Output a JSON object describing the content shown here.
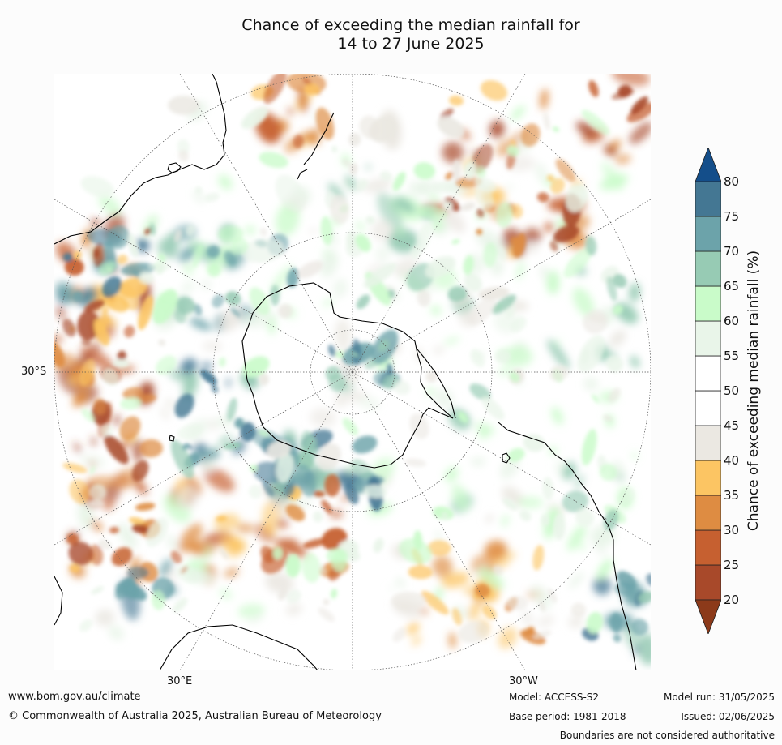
{
  "title_line1": "Chance of exceeding the median rainfall for",
  "title_line2": "14 to 27 June 2025",
  "map": {
    "projection": "south-polar-stereographic",
    "graticule_labels": {
      "latitude": "30°S",
      "longitude_east": "30°E",
      "longitude_west": "30°W"
    },
    "colors": {
      "land_outline": "#000000",
      "graticule": "#555555",
      "ocean_background": "#ffffff"
    }
  },
  "colorbar": {
    "label": "Chance of exceeding median rainfall (%)",
    "ticks": [
      "20",
      "25",
      "30",
      "35",
      "40",
      "45",
      "50",
      "55",
      "60",
      "65",
      "70",
      "75",
      "80"
    ],
    "under_color": "#8c3a1a",
    "over_color": "#144e8a",
    "bins": [
      {
        "from": 20,
        "to": 25,
        "color": "#a8492a"
      },
      {
        "from": 25,
        "to": 30,
        "color": "#c66030"
      },
      {
        "from": 30,
        "to": 35,
        "color": "#de8c42"
      },
      {
        "from": 35,
        "to": 40,
        "color": "#fcc563"
      },
      {
        "from": 40,
        "to": 45,
        "color": "#ebe8e2"
      },
      {
        "from": 45,
        "to": 50,
        "color": "#ffffff"
      },
      {
        "from": 50,
        "to": 55,
        "color": "#ffffff"
      },
      {
        "from": 55,
        "to": 60,
        "color": "#e9f5e9"
      },
      {
        "from": 60,
        "to": 65,
        "color": "#c9fbc9"
      },
      {
        "from": 65,
        "to": 70,
        "color": "#97cbb4"
      },
      {
        "from": 70,
        "to": 75,
        "color": "#6ca3aa"
      },
      {
        "from": 75,
        "to": 80,
        "color": "#447793"
      }
    ]
  },
  "footer": {
    "url": "www.bom.gov.au/climate",
    "copyright": "© Commonwealth of Australia 2025, Australian Bureau of Meteorology",
    "model": "Model: ACCESS-S2",
    "base_period": "Base period: 1981-2018",
    "model_run": "Model run: 31/05/2025",
    "issued": "Issued: 02/06/2025",
    "disclaimer": "Boundaries are not considered authoritative"
  }
}
